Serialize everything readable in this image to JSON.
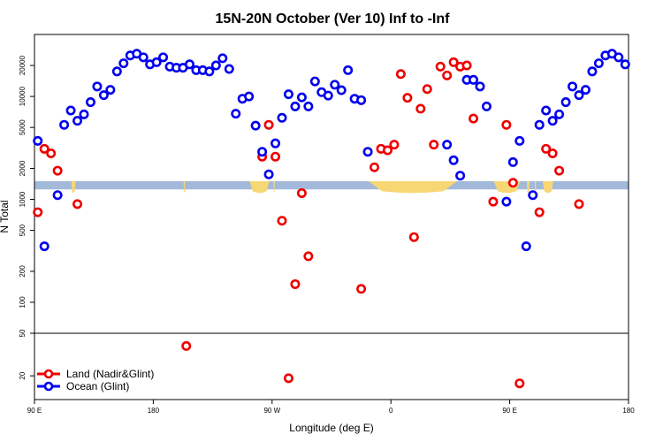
{
  "chart_data": {
    "type": "scatter",
    "title": "15N-20N October (Ver 10)   Inf to -Inf",
    "xlabel": "Longitude (deg E)",
    "ylabel": "N Total",
    "y_scale": "log",
    "upper_ylim": [
      50,
      40000
    ],
    "lower_ylim": [
      12,
      50
    ],
    "x_ticks": [
      {
        "x": 0,
        "label": "90 E"
      },
      {
        "x": 90,
        "label": "180"
      },
      {
        "x": 180,
        "label": "90 W"
      },
      {
        "x": 270,
        "label": "0"
      },
      {
        "x": 360,
        "label": "90 E"
      },
      {
        "x": 450,
        "label": "180"
      }
    ],
    "y_ticks_upper": [
      "50",
      "100",
      "200",
      "500",
      "1000",
      "2000",
      "5000",
      "10000",
      "20000"
    ],
    "y_ticks_lower": [
      "20"
    ],
    "legend_position": "bottom-left",
    "land_band": {
      "y_range": [
        1250,
        1500
      ],
      "color": "#a3b9d9",
      "land_color": "#f7d774"
    },
    "series": [
      {
        "name": "Land (Nadir&Glint)",
        "color": "#ee0000",
        "points": [
          [
            2.5,
            750
          ],
          [
            7.5,
            3100
          ],
          [
            12.5,
            2800
          ],
          [
            17.5,
            1900
          ],
          [
            32.5,
            900
          ],
          [
            115,
            38
          ],
          [
            172.5,
            2600
          ],
          [
            177.5,
            5300
          ],
          [
            182.5,
            2600
          ],
          [
            187.5,
            620
          ],
          [
            192.5,
            19
          ],
          [
            197.5,
            150
          ],
          [
            202.5,
            1150
          ],
          [
            207.5,
            280
          ],
          [
            247.5,
            135
          ],
          [
            257.5,
            2050
          ],
          [
            262.5,
            3100
          ],
          [
            267.5,
            3000
          ],
          [
            272.5,
            3400
          ],
          [
            277.5,
            16500
          ],
          [
            282.5,
            9700
          ],
          [
            287.5,
            430
          ],
          [
            292.5,
            7600
          ],
          [
            297.5,
            11800
          ],
          [
            302.5,
            3400
          ],
          [
            307.5,
            19500
          ],
          [
            312.5,
            16000
          ],
          [
            317.5,
            21500
          ],
          [
            322.5,
            19500
          ],
          [
            327.5,
            20000
          ],
          [
            332.5,
            6100
          ],
          [
            347.5,
            950
          ],
          [
            357.5,
            5300
          ],
          [
            362.5,
            1450
          ],
          [
            367.5,
            17
          ],
          [
            382.5,
            750
          ],
          [
            387.5,
            3100
          ],
          [
            392.5,
            2800
          ],
          [
            397.5,
            1900
          ],
          [
            412.5,
            900
          ]
        ]
      },
      {
        "name": "Ocean (Glint)",
        "color": "#0000ee",
        "points": [
          [
            2.5,
            3700
          ],
          [
            7.5,
            350
          ],
          [
            17.5,
            1100
          ],
          [
            22.5,
            5300
          ],
          [
            27.5,
            7300
          ],
          [
            32.5,
            5800
          ],
          [
            37.5,
            6700
          ],
          [
            42.5,
            8800
          ],
          [
            47.5,
            12500
          ],
          [
            52.5,
            10300
          ],
          [
            57.5,
            11600
          ],
          [
            62.5,
            17500
          ],
          [
            67.5,
            21000
          ],
          [
            72.5,
            25000
          ],
          [
            77.5,
            26000
          ],
          [
            82.5,
            24000
          ],
          [
            87.5,
            20500
          ],
          [
            92.5,
            21500
          ],
          [
            97.5,
            24000
          ],
          [
            102.5,
            19500
          ],
          [
            107.5,
            19000
          ],
          [
            112.5,
            19000
          ],
          [
            117.5,
            20500
          ],
          [
            122.5,
            18000
          ],
          [
            127.5,
            18000
          ],
          [
            132.5,
            17500
          ],
          [
            137.5,
            20000
          ],
          [
            142.5,
            23500
          ],
          [
            147.5,
            18500
          ],
          [
            152.5,
            6800
          ],
          [
            157.5,
            9500
          ],
          [
            162.5,
            10000
          ],
          [
            167.5,
            5200
          ],
          [
            172.5,
            2900
          ],
          [
            177.5,
            1750
          ],
          [
            182.5,
            3500
          ],
          [
            187.5,
            6200
          ],
          [
            192.5,
            10500
          ],
          [
            197.5,
            8000
          ],
          [
            202.5,
            9800
          ],
          [
            207.5,
            8000
          ],
          [
            212.5,
            14000
          ],
          [
            217.5,
            11000
          ],
          [
            222.5,
            10200
          ],
          [
            227.5,
            13000
          ],
          [
            232.5,
            11500
          ],
          [
            237.5,
            18000
          ],
          [
            242.5,
            9500
          ],
          [
            247.5,
            9200
          ],
          [
            252.5,
            2900
          ],
          [
            312.5,
            3400
          ],
          [
            317.5,
            2400
          ],
          [
            322.5,
            1700
          ],
          [
            327.5,
            14500
          ],
          [
            332.5,
            14500
          ],
          [
            337.5,
            12500
          ],
          [
            342.5,
            8000
          ],
          [
            357.5,
            950
          ],
          [
            362.5,
            2300
          ],
          [
            367.5,
            3700
          ],
          [
            372.5,
            350
          ],
          [
            377.5,
            1100
          ],
          [
            382.5,
            5300
          ],
          [
            387.5,
            7300
          ],
          [
            392.5,
            5800
          ],
          [
            397.5,
            6700
          ],
          [
            402.5,
            8800
          ],
          [
            407.5,
            12500
          ],
          [
            412.5,
            10300
          ],
          [
            417.5,
            11600
          ],
          [
            422.5,
            17500
          ],
          [
            427.5,
            21000
          ],
          [
            432.5,
            25000
          ],
          [
            437.5,
            26000
          ],
          [
            442.5,
            24000
          ],
          [
            447.5,
            20500
          ]
        ]
      }
    ]
  }
}
